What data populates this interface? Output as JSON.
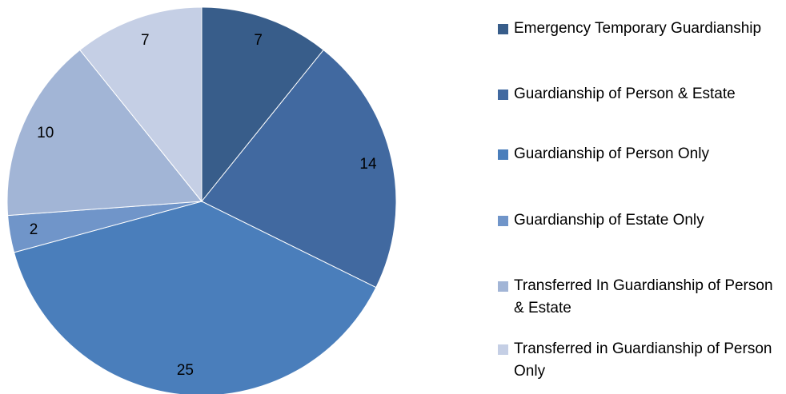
{
  "chart_data": {
    "type": "pie",
    "categories": [
      "Emergency Temporary Guardianship",
      "Guardianship of Person & Estate",
      "Guardianship of Person Only",
      "Guardianship of Estate Only",
      "Transferred In Guardianship of Person & Estate",
      "Transferred in Guardianship of Person Only"
    ],
    "values": [
      7,
      14,
      25,
      2,
      10,
      7
    ],
    "colors": [
      "#385d8a",
      "#4169a0",
      "#4a7ebb",
      "#7095c9",
      "#a2b5d6",
      "#c5cfe5"
    ],
    "legend": "right"
  }
}
